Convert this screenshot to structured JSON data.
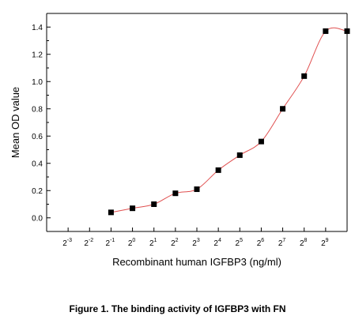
{
  "chart_data": {
    "type": "scatter",
    "xlabel": "Recombinant human IGFBP3 (ng/ml)",
    "ylabel": "Mean OD value",
    "x_scale": "log2",
    "x_ticks": [
      {
        "base": "2",
        "exp": "-3"
      },
      {
        "base": "2",
        "exp": "-2"
      },
      {
        "base": "2",
        "exp": "-1"
      },
      {
        "base": "2",
        "exp": "0"
      },
      {
        "base": "2",
        "exp": "1"
      },
      {
        "base": "2",
        "exp": "2"
      },
      {
        "base": "2",
        "exp": "3"
      },
      {
        "base": "2",
        "exp": "4"
      },
      {
        "base": "2",
        "exp": "5"
      },
      {
        "base": "2",
        "exp": "6"
      },
      {
        "base": "2",
        "exp": "7"
      },
      {
        "base": "2",
        "exp": "8"
      },
      {
        "base": "2",
        "exp": "9"
      }
    ],
    "y_ticks": [
      "0.0",
      "0.2",
      "0.4",
      "0.6",
      "0.8",
      "1.0",
      "1.2",
      "1.4"
    ],
    "xlim": [
      0.0625,
      1024
    ],
    "ylim": [
      -0.1,
      1.5
    ],
    "grid": false,
    "series": [
      {
        "marker": "square",
        "color": "#000000",
        "x": [
          0.5,
          1,
          2,
          4,
          8,
          16,
          32,
          64,
          128,
          256,
          512,
          1024
        ],
        "y": [
          0.04,
          0.07,
          0.1,
          0.18,
          0.21,
          0.35,
          0.46,
          0.56,
          0.8,
          1.04,
          1.37,
          1.37
        ]
      }
    ],
    "fit_line": {
      "color": "#e05050"
    }
  },
  "caption": "Figure 1. The binding activity of IGFBP3 with FN"
}
